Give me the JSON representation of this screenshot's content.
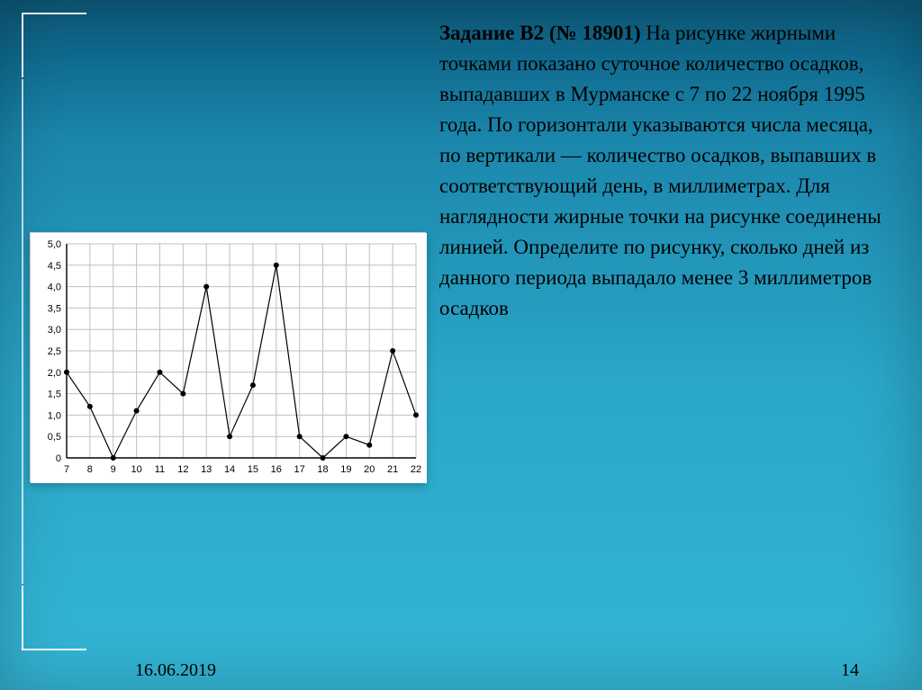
{
  "task": {
    "title_bold": "Задание B2 (№ 18901)",
    "body": " На рисунке жирными точками показано суточное количество осадков, выпадавших в Мурманске с 7 по 22 ноября 1995 года. По горизонтали указываются числа месяца, по вертикали — количество осадков, выпавших в соответствующий день, в миллиметрах. Для наглядности жирные точки на рисунке соединены линией. Определите по рисунку, сколько дней из данного периода выпадало менее 3 миллиметров осадков"
  },
  "chart": {
    "type": "line",
    "background_color": "#ffffff",
    "grid_color": "#bfbfbf",
    "line_color": "#000000",
    "marker_color": "#000000",
    "axis_color": "#000000",
    "tick_fontsize": 11,
    "line_width": 1.2,
    "marker_radius": 3.0,
    "xlim": [
      7,
      22
    ],
    "ylim": [
      0,
      5
    ],
    "x_ticks": [
      7,
      8,
      9,
      10,
      11,
      12,
      13,
      14,
      15,
      16,
      17,
      18,
      19,
      20,
      21,
      22
    ],
    "y_ticks": [
      0,
      0.5,
      1.0,
      1.5,
      2.0,
      2.5,
      3.0,
      3.5,
      4.0,
      4.5,
      5.0
    ],
    "y_tick_labels": [
      "0",
      "0,5",
      "1,0",
      "1,5",
      "2,0",
      "2,5",
      "3,0",
      "3,5",
      "4,0",
      "4,5",
      "5,0"
    ],
    "x": [
      7,
      8,
      9,
      10,
      11,
      12,
      13,
      14,
      15,
      16,
      17,
      18,
      19,
      20,
      21,
      22
    ],
    "y": [
      2.0,
      1.2,
      0.0,
      1.1,
      2.0,
      1.5,
      4.0,
      0.5,
      1.7,
      4.5,
      0.5,
      0.0,
      0.5,
      0.3,
      2.5,
      1.0
    ]
  },
  "footer": {
    "date": "16.06.2019",
    "page": "14"
  }
}
